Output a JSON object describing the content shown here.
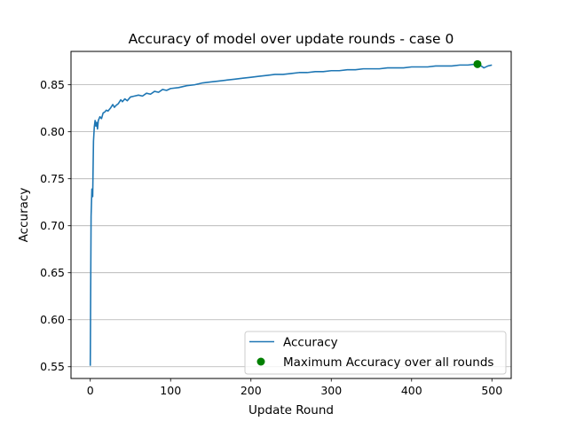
{
  "chart_data": {
    "type": "line",
    "title": "Accuracy of model over update rounds - case 0",
    "xlabel": "Update Round",
    "ylabel": "Accuracy",
    "xlim": [
      -24,
      524
    ],
    "ylim": [
      0.5375,
      0.8855
    ],
    "xticks": [
      0,
      100,
      200,
      300,
      400,
      500
    ],
    "yticks": [
      0.55,
      0.6,
      0.65,
      0.7,
      0.75,
      0.8,
      0.85
    ],
    "xtick_labels": [
      "0",
      "100",
      "200",
      "300",
      "400",
      "500"
    ],
    "ytick_labels": [
      "0.55",
      "0.60",
      "0.65",
      "0.70",
      "0.75",
      "0.80",
      "0.85"
    ],
    "grid": "horizontal",
    "legend_position": "lower-right",
    "series": [
      {
        "name": "Accuracy",
        "color": "#1f77b4",
        "x": [
          0,
          1,
          2,
          3,
          4,
          5,
          6,
          7,
          8,
          9,
          10,
          12,
          14,
          16,
          18,
          20,
          22,
          25,
          28,
          30,
          32,
          35,
          38,
          40,
          43,
          46,
          50,
          55,
          60,
          65,
          70,
          75,
          80,
          85,
          90,
          95,
          100,
          110,
          120,
          130,
          140,
          150,
          160,
          170,
          180,
          190,
          200,
          210,
          220,
          230,
          240,
          250,
          260,
          270,
          280,
          290,
          300,
          310,
          320,
          330,
          340,
          350,
          360,
          370,
          380,
          390,
          400,
          410,
          420,
          430,
          440,
          450,
          460,
          470,
          480,
          485,
          490,
          495,
          500
        ],
        "y": [
          0.551,
          0.71,
          0.739,
          0.731,
          0.79,
          0.805,
          0.812,
          0.806,
          0.81,
          0.803,
          0.812,
          0.816,
          0.814,
          0.82,
          0.821,
          0.823,
          0.822,
          0.825,
          0.829,
          0.826,
          0.828,
          0.83,
          0.834,
          0.832,
          0.835,
          0.833,
          0.837,
          0.838,
          0.839,
          0.838,
          0.841,
          0.84,
          0.843,
          0.842,
          0.845,
          0.844,
          0.846,
          0.847,
          0.849,
          0.85,
          0.852,
          0.853,
          0.854,
          0.855,
          0.856,
          0.857,
          0.858,
          0.859,
          0.86,
          0.861,
          0.861,
          0.862,
          0.863,
          0.863,
          0.864,
          0.864,
          0.865,
          0.865,
          0.866,
          0.866,
          0.867,
          0.867,
          0.867,
          0.868,
          0.868,
          0.868,
          0.869,
          0.869,
          0.869,
          0.87,
          0.87,
          0.87,
          0.871,
          0.871,
          0.872,
          0.871,
          0.868,
          0.87,
          0.871
        ]
      },
      {
        "name": "Maximum Accuracy over all rounds",
        "type": "scatter",
        "color": "#008000",
        "x": [
          482
        ],
        "y": [
          0.872
        ]
      }
    ]
  }
}
